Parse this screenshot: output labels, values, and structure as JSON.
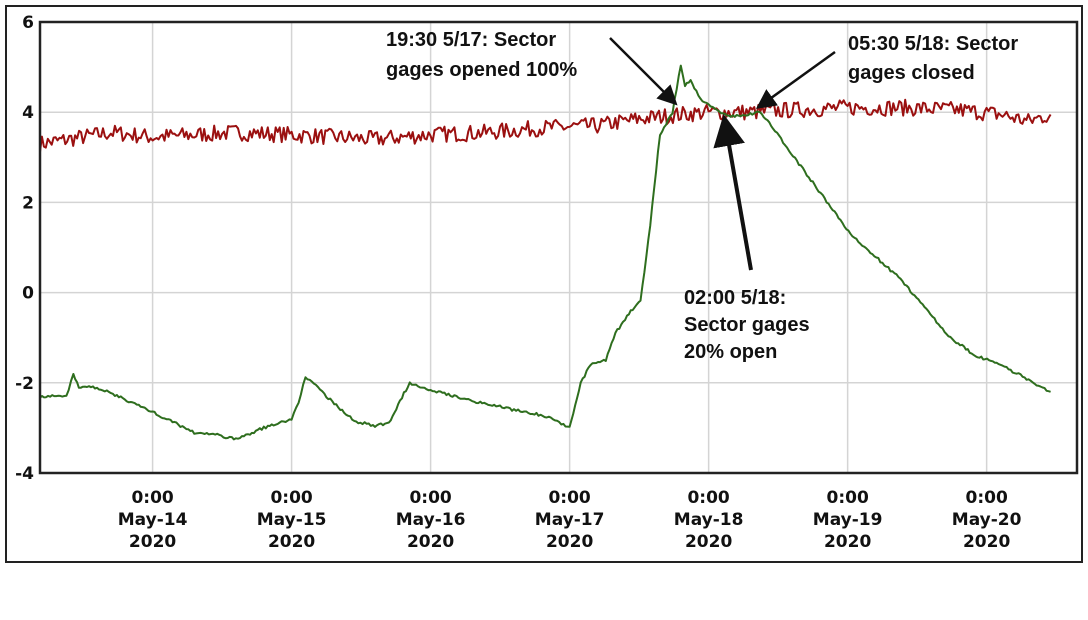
{
  "chart_data": {
    "type": "line",
    "title": "",
    "xlabel": "",
    "ylabel": "",
    "xunit": "day of May 2020",
    "xlim": [
      13.19,
      20.65
    ],
    "ylim": [
      -4,
      6
    ],
    "yticks": [
      "6",
      "4",
      "2",
      "0",
      "-2",
      "-4"
    ],
    "ytick_values": [
      6,
      4,
      2,
      0,
      -2,
      -4
    ],
    "xticks": [
      {
        "value": 14,
        "l1": "0:00",
        "l2": "May-14",
        "l3": "2020"
      },
      {
        "value": 15,
        "l1": "0:00",
        "l2": "May-15",
        "l3": "2020"
      },
      {
        "value": 16,
        "l1": "0:00",
        "l2": "May-16",
        "l3": "2020"
      },
      {
        "value": 17,
        "l1": "0:00",
        "l2": "May-17",
        "l3": "2020"
      },
      {
        "value": 18,
        "l1": "0:00",
        "l2": "May-18",
        "l3": "2020"
      },
      {
        "value": 19,
        "l1": "0:00",
        "l2": "May-19",
        "l3": "2020"
      },
      {
        "value": 20,
        "l1": "0:00",
        "l2": "May-20",
        "l3": "2020"
      }
    ],
    "grid": true,
    "series": [
      {
        "name": "red-series",
        "color": "#9b1010",
        "noise": 0.18,
        "x": [
          13.19,
          13.4,
          13.7,
          14.0,
          14.3,
          14.6,
          15.0,
          15.3,
          15.6,
          16.0,
          16.4,
          16.8,
          17.2,
          17.5,
          17.8,
          18.0,
          18.3,
          18.6,
          19.0,
          19.4,
          19.8,
          20.1,
          20.3,
          20.46
        ],
        "y": [
          3.3,
          3.4,
          3.55,
          3.45,
          3.5,
          3.55,
          3.5,
          3.45,
          3.4,
          3.5,
          3.55,
          3.65,
          3.7,
          3.85,
          3.95,
          4.0,
          4.0,
          4.05,
          4.1,
          4.1,
          4.05,
          3.95,
          3.8,
          3.95
        ]
      },
      {
        "name": "green-series",
        "color": "#2e6e1e",
        "noise": 0.03,
        "x": [
          13.19,
          13.38,
          13.43,
          13.47,
          13.6,
          13.9,
          14.1,
          14.3,
          14.45,
          14.6,
          14.8,
          15.0,
          15.05,
          15.1,
          15.25,
          15.45,
          15.6,
          15.7,
          15.78,
          15.85,
          16.0,
          16.3,
          16.6,
          16.85,
          17.0,
          17.08,
          17.15,
          17.26,
          17.33,
          17.44,
          17.51,
          17.58,
          17.65,
          17.74,
          17.8,
          17.83,
          17.87,
          17.94,
          18.0,
          18.09,
          18.16,
          18.37,
          18.45,
          19.02,
          19.38,
          19.74,
          19.92,
          20.1,
          20.46
        ],
        "y": [
          -2.3,
          -2.3,
          -1.8,
          -2.1,
          -2.1,
          -2.5,
          -2.8,
          -3.1,
          -3.15,
          -3.25,
          -3.0,
          -2.8,
          -2.45,
          -1.85,
          -2.3,
          -2.85,
          -2.95,
          -2.9,
          -2.4,
          -2.0,
          -2.15,
          -2.4,
          -2.6,
          -2.75,
          -3.0,
          -2.0,
          -1.6,
          -1.5,
          -0.9,
          -0.4,
          -0.2,
          1.5,
          3.5,
          4.0,
          5.05,
          4.6,
          4.7,
          4.3,
          4.15,
          4.0,
          3.9,
          4.0,
          3.7,
          1.3,
          0.3,
          -1.0,
          -1.4,
          -1.6,
          -2.2
        ]
      }
    ],
    "annotations": [
      {
        "lines": [
          "19:30 5/17: Sector",
          "gages opened 100%"
        ]
      },
      {
        "lines": [
          "05:30 5/18: Sector",
          "gages closed"
        ]
      },
      {
        "lines": [
          "02:00 5/18:",
          "Sector gages",
          "20% open"
        ]
      }
    ]
  }
}
